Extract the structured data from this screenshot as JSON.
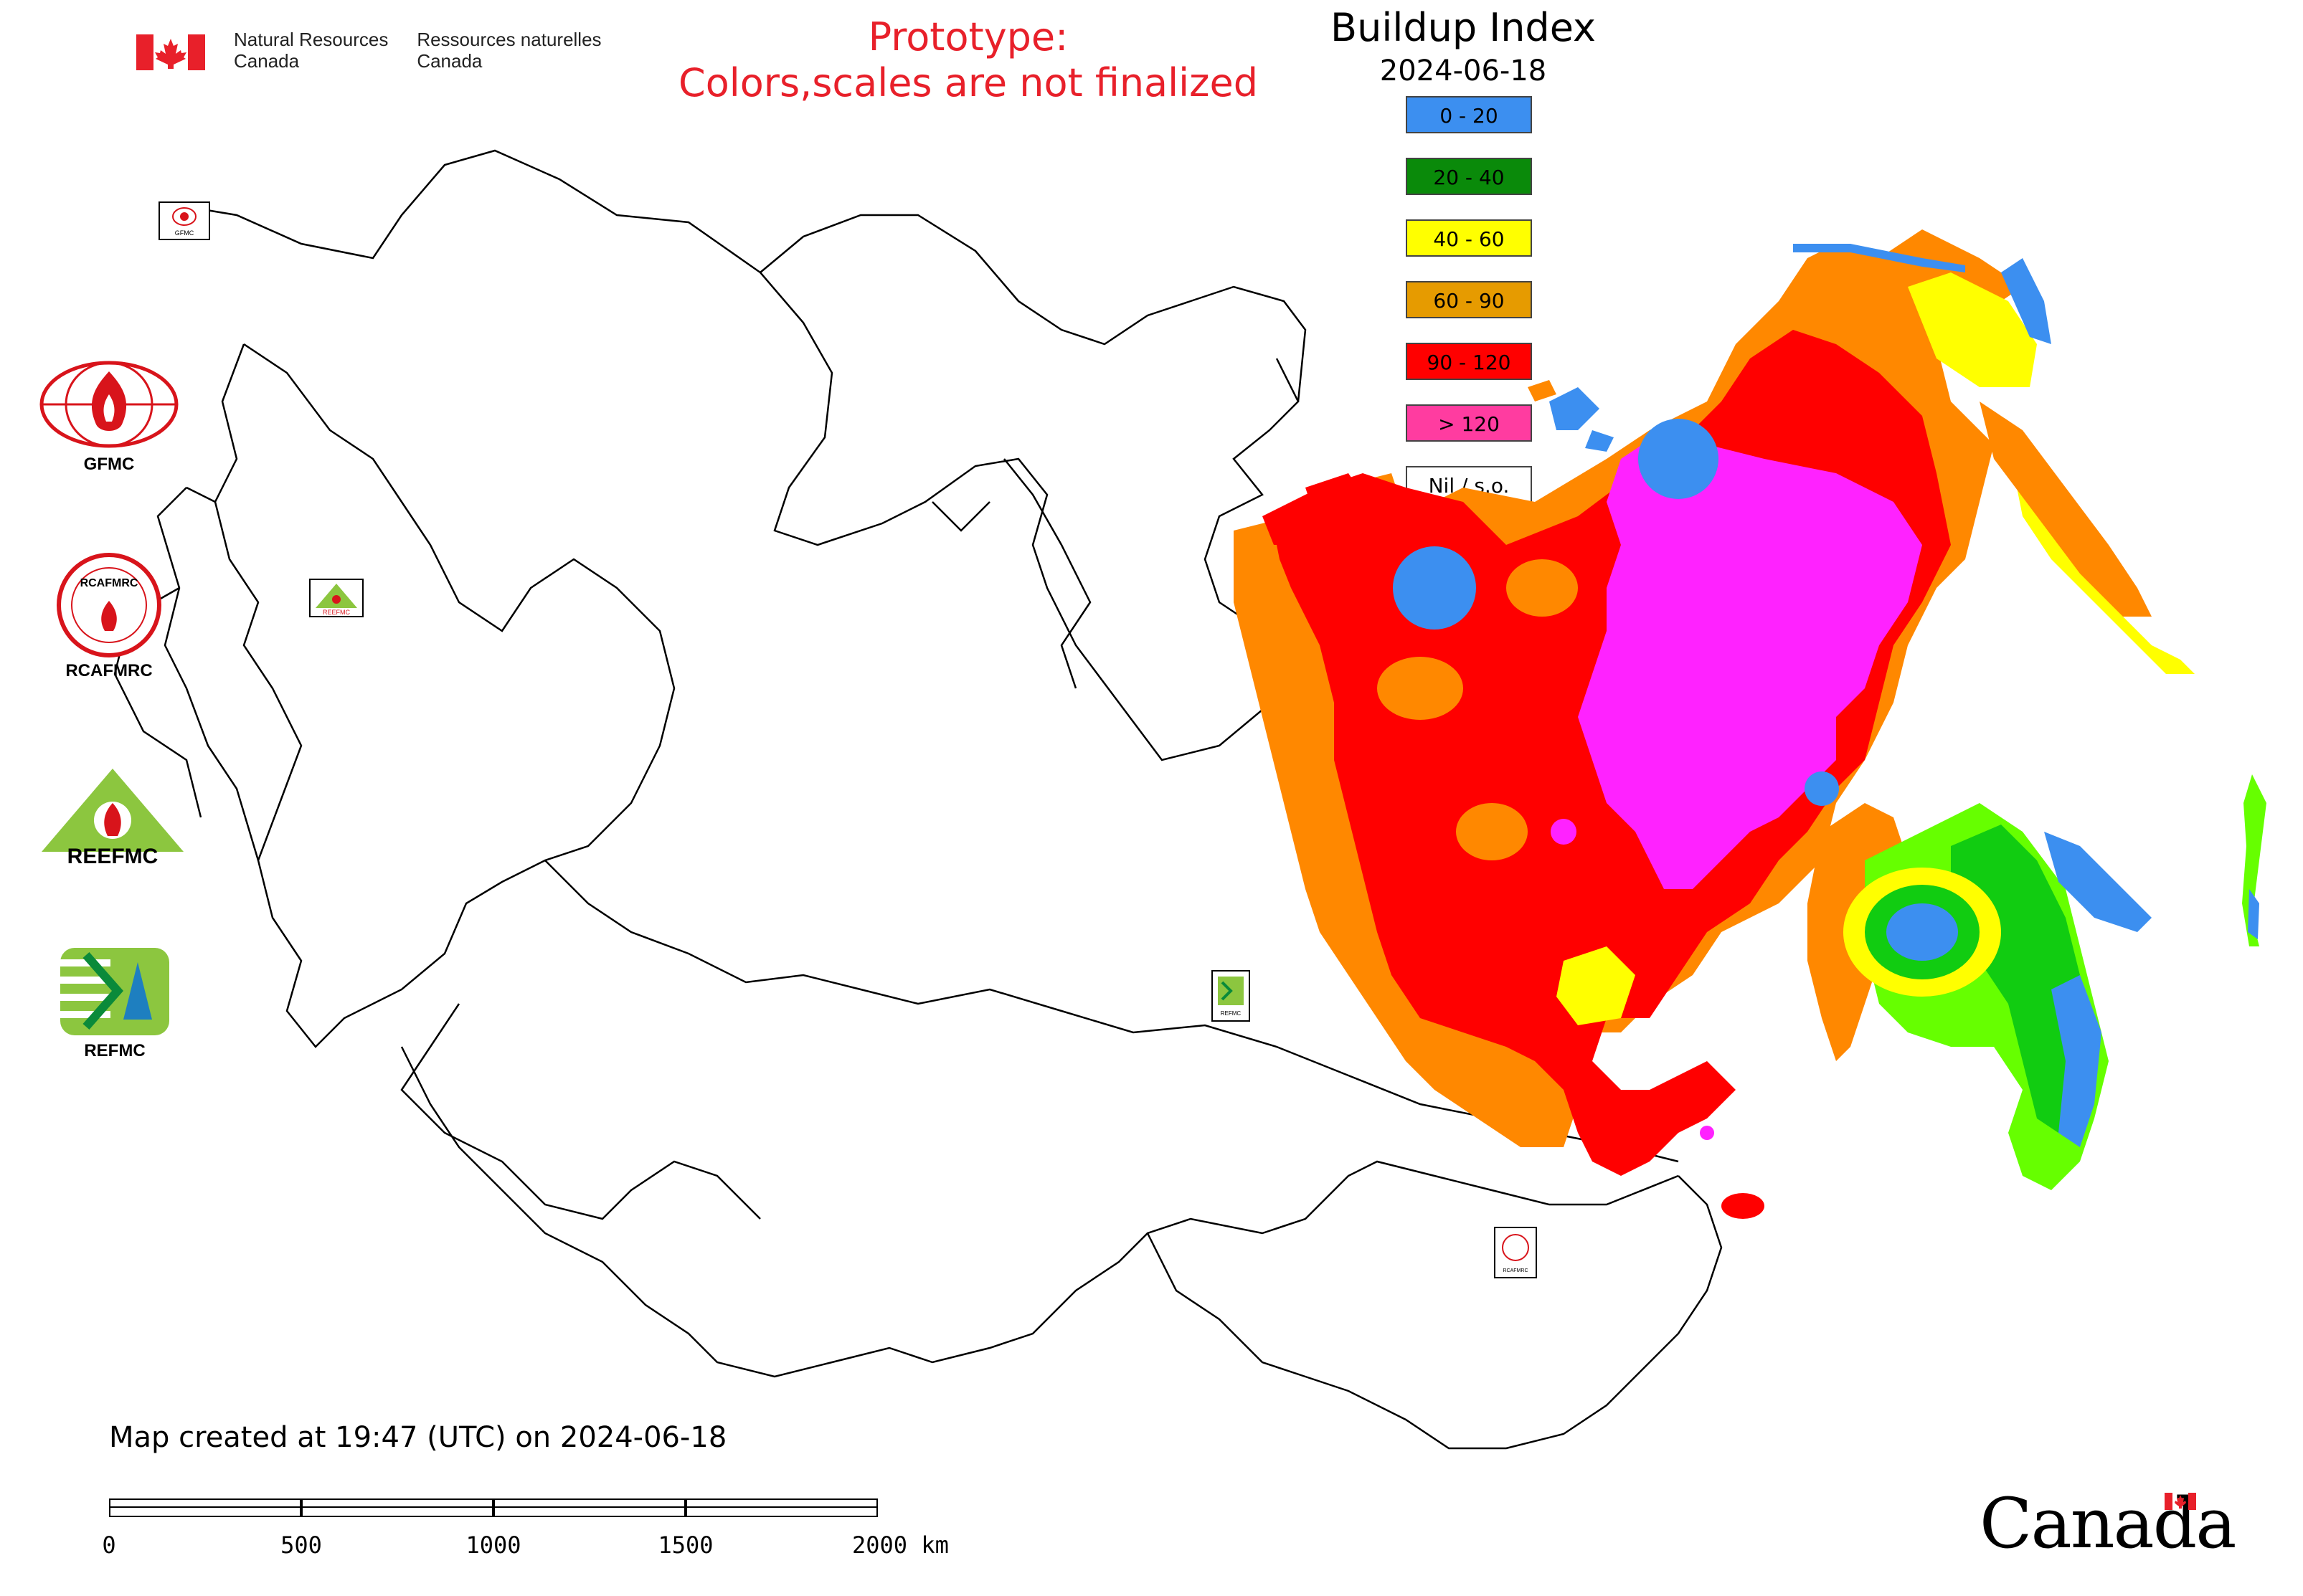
{
  "header": {
    "agency_en": [
      "Natural Resources",
      "Canada"
    ],
    "agency_fr": [
      "Ressources naturelles",
      "Canada"
    ],
    "prototype_line1": "Prototype:",
    "prototype_line2": "Colors,scales are not finalized",
    "title": "Buildup Index",
    "date": "2024-06-18"
  },
  "legend": [
    {
      "label": "0 - 20",
      "color": "#3c8ff0"
    },
    {
      "label": "20 - 40",
      "color": "#0a8a0a"
    },
    {
      "label": "40 - 60",
      "color": "#ffff00"
    },
    {
      "label": "60 - 90",
      "color": "#e69b00"
    },
    {
      "label": "90 - 120",
      "color": "#ff0000"
    },
    {
      "label": "> 120",
      "color": "#ff3ca0"
    },
    {
      "label": "Nil / s.o.",
      "color": "#ffffff"
    }
  ],
  "map_palette": {
    "very_high": "#ff22ff",
    "high": "#ff0000",
    "moderate": "#ff8800",
    "low_moderate": "#ffff00",
    "light_green": "#66ff00",
    "green": "#11cc11",
    "low": "#3c8ff0"
  },
  "logos": {
    "gfmc": "GFMC",
    "rcafmrc": "RCAFMRC",
    "reefmc": "REEFMC",
    "refmc": "REFMC",
    "reefmc_wordmark": "REEFMC",
    "rcafmrc_wordmark": "RCAFMRC",
    "small_gfmc": "GFMC",
    "small_refmc": "REFMC",
    "small_rcafmrc": "RCAFMRC"
  },
  "footer": {
    "created": "Map created at 19:47 (UTC) on 2024-06-18",
    "scale_labels": [
      "0",
      "500",
      "1000",
      "1500",
      "2000 km"
    ],
    "wordmark": "Canada"
  }
}
